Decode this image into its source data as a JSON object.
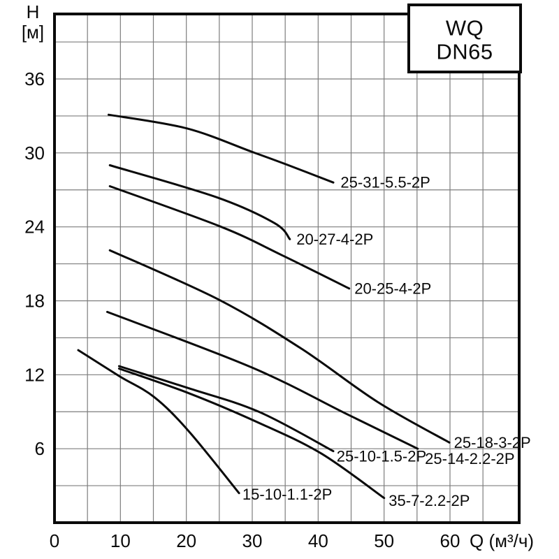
{
  "title_box": {
    "line1": "WQ",
    "line2": "DN65"
  },
  "axes": {
    "y_name": "H",
    "y_unit": "[м]",
    "x_label": "Q (м³/ч)"
  },
  "colors": {
    "curve": "#0a0a0a",
    "grid": "#7d7d7d",
    "frame": "#0a0a0a",
    "background": "#ffffff",
    "text": "#0a0a0a"
  },
  "chart_data": {
    "type": "line",
    "title": "WQ DN65",
    "xlabel": "Q (м³/ч)",
    "ylabel": "H [м]",
    "xlim": [
      0,
      70.5
    ],
    "ylim": [
      0,
      41.3
    ],
    "x_ticks": [
      0,
      10,
      20,
      30,
      40,
      50,
      60
    ],
    "y_ticks": [
      6,
      12,
      18,
      24,
      30,
      36
    ],
    "x_grid_step": 5,
    "y_grid_step": 3,
    "grid": "on",
    "legend_position": "labels-at-curve-ends",
    "series": [
      {
        "name": "25-31-5.5-2P",
        "points": [
          [
            8.2,
            33.1
          ],
          [
            20.0,
            32.0
          ],
          [
            29.9,
            30.1
          ],
          [
            35.5,
            29.0
          ],
          [
            42.3,
            27.6
          ]
        ],
        "label_at": [
          43.4,
          27.6
        ]
      },
      {
        "name": "20-27-4-2P",
        "points": [
          [
            8.4,
            29.0
          ],
          [
            24.6,
            26.4
          ],
          [
            33.4,
            24.3
          ],
          [
            35.7,
            23.0
          ]
        ],
        "label_at": [
          36.7,
          23.0
        ]
      },
      {
        "name": "20-25-4-2P",
        "points": [
          [
            8.4,
            27.3
          ],
          [
            25.3,
            24.0
          ],
          [
            34.5,
            21.7
          ],
          [
            44.7,
            19.0
          ]
        ],
        "label_at": [
          45.5,
          19.0
        ]
      },
      {
        "name": "25-18-3-2P",
        "points": [
          [
            8.4,
            22.1
          ],
          [
            24.9,
            18.1
          ],
          [
            37.5,
            14.1
          ],
          [
            49.0,
            9.8
          ],
          [
            59.9,
            6.5
          ]
        ],
        "label_at": [
          60.6,
          6.5
        ]
      },
      {
        "name": "25-14-2.2-2P",
        "points": [
          [
            8.0,
            17.1
          ],
          [
            29.9,
            12.6
          ],
          [
            44.4,
            8.8
          ],
          [
            55.1,
            6.0
          ]
        ],
        "label_at": [
          56.2,
          5.2
        ]
      },
      {
        "name": "25-10-1.5-2P",
        "points": [
          [
            9.8,
            12.7
          ],
          [
            20.4,
            10.9
          ],
          [
            31.0,
            9.0
          ],
          [
            42.3,
            5.8
          ]
        ],
        "label_at": [
          42.8,
          5.4
        ]
      },
      {
        "name": "15-10-1.1-2P",
        "points": [
          [
            3.6,
            14.0
          ],
          [
            9.8,
            11.9
          ],
          [
            15.1,
            10.2
          ],
          [
            20.4,
            7.4
          ],
          [
            28.0,
            2.4
          ]
        ],
        "label_at": [
          28.5,
          2.3
        ]
      },
      {
        "name": "35-7-2.2-2P",
        "points": [
          [
            9.8,
            12.5
          ],
          [
            20.4,
            10.5
          ],
          [
            31.0,
            8.1
          ],
          [
            40.5,
            5.6
          ],
          [
            50.0,
            2.0
          ]
        ],
        "label_at": [
          50.7,
          1.8
        ]
      }
    ]
  }
}
